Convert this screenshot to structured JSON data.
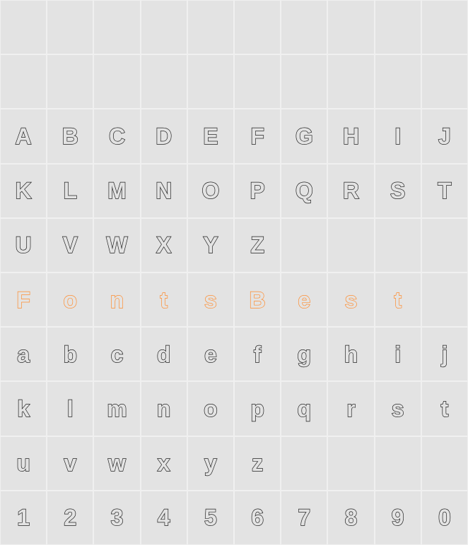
{
  "chart": {
    "type": "glyph-grid",
    "cols": 10,
    "rows": 10,
    "background_color": "#e3e3e3",
    "grid_border_color": "#f0f0f0",
    "glyph_stroke_default": "#1e1e1e",
    "glyph_stroke_accent": "#ff8c2e",
    "glyph_fontsize": 32,
    "cells": [
      "",
      "",
      "",
      "",
      "",
      "",
      "",
      "",
      "",
      "",
      "",
      "",
      "",
      "",
      "",
      "",
      "",
      "",
      "",
      "",
      "A",
      "B",
      "C",
      "D",
      "E",
      "F",
      "G",
      "H",
      "I",
      "J",
      "K",
      "L",
      "M",
      "N",
      "O",
      "P",
      "Q",
      "R",
      "S",
      "T",
      "U",
      "V",
      "W",
      "X",
      "Y",
      "Z",
      "",
      "",
      "",
      "",
      "F",
      "o",
      "n",
      "t",
      "s",
      "B",
      "e",
      "s",
      "t",
      "",
      "a",
      "b",
      "c",
      "d",
      "e",
      "f",
      "g",
      "h",
      "i",
      "j",
      "k",
      "l",
      "m",
      "n",
      "o",
      "p",
      "q",
      "r",
      "s",
      "t",
      "u",
      "v",
      "w",
      "x",
      "y",
      "z",
      "",
      "",
      "",
      "",
      "1",
      "2",
      "3",
      "4",
      "5",
      "6",
      "7",
      "8",
      "9",
      "0"
    ],
    "accent_row_index": 5
  }
}
